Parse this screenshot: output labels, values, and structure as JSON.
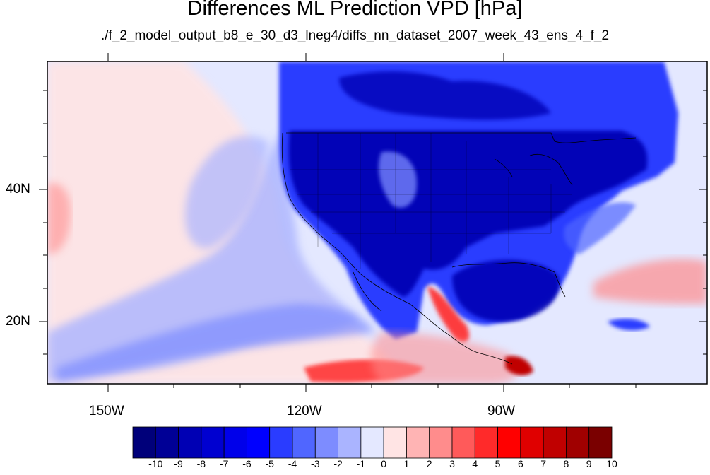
{
  "title": "Differences ML Prediction VPD [hPa]",
  "subtitle": "./f_2_model_output_b8_e_30_d3_lneg4/diffs_nn_dataset_2007_week_43_ens_4_f_2",
  "lat_labels": [
    "40N",
    "20N"
  ],
  "lon_labels": [
    "150W",
    "120W",
    "90W"
  ],
  "colorbar": {
    "labels": [
      "-10",
      "-9",
      "-8",
      "-7",
      "-6",
      "-5",
      "-4",
      "-3",
      "-2",
      "-1",
      "0",
      "1",
      "2",
      "3",
      "4",
      "5",
      "6",
      "7",
      "8",
      "9",
      "10"
    ],
    "colors": [
      "#00007a",
      "#000096",
      "#0000b4",
      "#0000d0",
      "#0000ea",
      "#0000ff",
      "#2a3cff",
      "#5066ff",
      "#7d8cff",
      "#aab4ff",
      "#e4e8ff",
      "#ffe4e4",
      "#ffb4b4",
      "#ff8c8c",
      "#ff5a5a",
      "#ff2a2a",
      "#ff0000",
      "#e00000",
      "#c00000",
      "#a00000",
      "#7a0000"
    ]
  },
  "map_colors": {
    "ocean_base": "#e4e8ff",
    "ocean_pale_pink": "#ffe4e4",
    "land_deep": "#0000b4",
    "land_mid": "#2a3cff",
    "red_strong": "#ff2a2a",
    "red_light": "#ff8c8c"
  }
}
